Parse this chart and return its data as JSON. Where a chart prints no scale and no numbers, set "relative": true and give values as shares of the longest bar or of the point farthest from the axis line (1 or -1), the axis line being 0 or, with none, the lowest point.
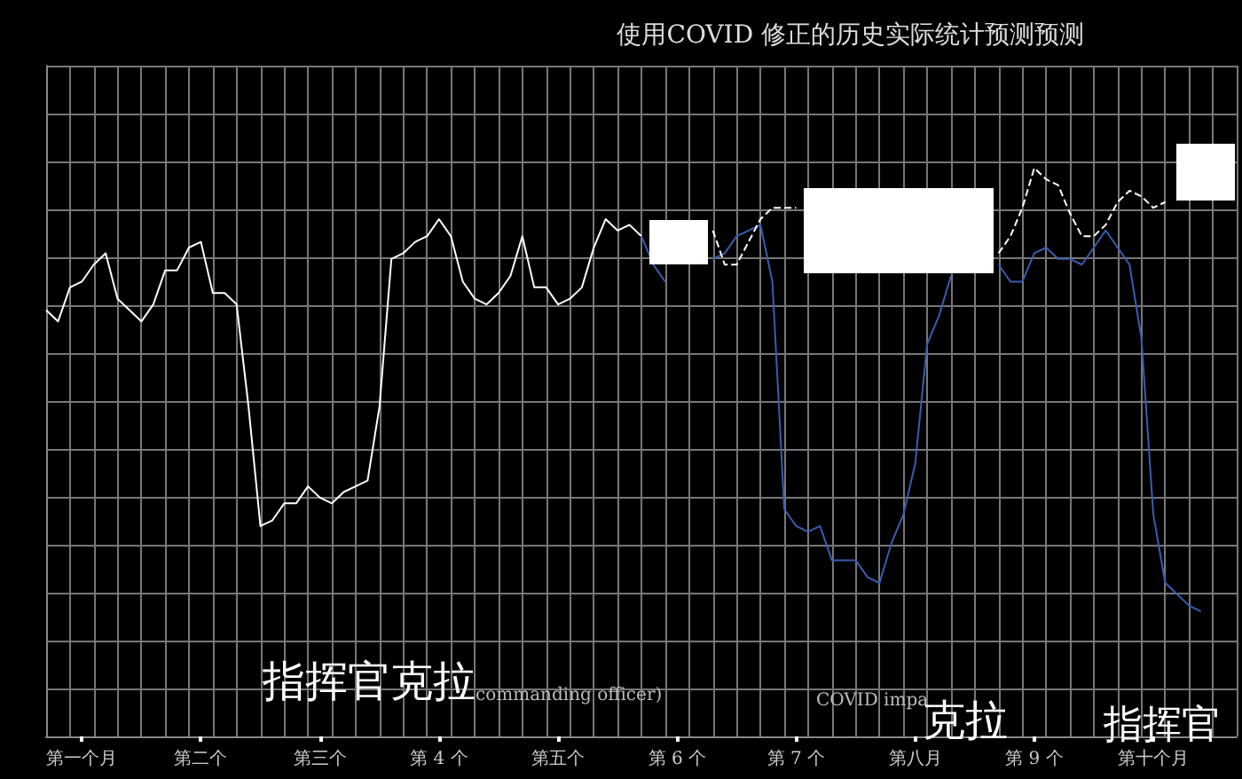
{
  "chart_data": {
    "type": "line",
    "title": "使用COVID 修正的历史实际统计预测预测",
    "relative": true,
    "grid": true,
    "annotations": [
      "指挥官克拉",
      "commanding officer)",
      "COVID impa",
      "克拉",
      "指挥官"
    ],
    "categories": [
      null,
      null,
      null,
      "第一个月",
      null,
      null,
      null,
      null,
      null,
      null,
      null,
      null,
      null,
      "第二个",
      null,
      null,
      null,
      null,
      null,
      null,
      null,
      null,
      null,
      "第三个",
      null,
      null,
      null,
      null,
      null,
      null,
      null,
      null,
      null,
      "第 4 个",
      null,
      null,
      null,
      null,
      null,
      null,
      null,
      null,
      null,
      "第五个",
      null,
      null,
      null,
      null,
      null,
      null,
      null,
      null,
      null,
      "第 6 个",
      null,
      null,
      null,
      null,
      null,
      null,
      null,
      null,
      null,
      "第 7 个",
      null,
      null,
      null,
      null,
      null,
      null,
      null,
      null,
      null,
      "第八月",
      null,
      null,
      null,
      null,
      null,
      null,
      null,
      null,
      null,
      "第 9 个",
      null,
      null,
      null,
      null,
      null,
      null,
      null,
      null,
      null,
      "第十个月",
      null,
      null,
      null,
      null,
      null,
      null,
      null
    ],
    "series": [
      {
        "color": "#ffffff",
        "line_style": "solid",
        "values": [
          0.75,
          0.73,
          0.79,
          0.8,
          0.83,
          0.85,
          0.77,
          0.75,
          0.73,
          0.76,
          0.82,
          0.82,
          0.86,
          0.87,
          0.78,
          0.78,
          0.76,
          0.58,
          0.37,
          0.38,
          0.41,
          0.41,
          0.44,
          0.42,
          0.41,
          0.43,
          0.44,
          0.45,
          0.58,
          0.84,
          0.85,
          0.87,
          0.88,
          0.91,
          0.88,
          0.8,
          0.77,
          0.76,
          0.78,
          0.81,
          0.88,
          0.79,
          0.79,
          0.76,
          0.77,
          0.79,
          0.86,
          0.91,
          0.89,
          0.9,
          0.88,
          null,
          null,
          null,
          null,
          null,
          null,
          null,
          null,
          null,
          null,
          null,
          null,
          null,
          null,
          null,
          null,
          null,
          null,
          null,
          null,
          null,
          null,
          null,
          null,
          null,
          null,
          null,
          null,
          null,
          null,
          null,
          null,
          null,
          null,
          null,
          null,
          null,
          null,
          null,
          null,
          null,
          null,
          null,
          null,
          null,
          null,
          null,
          null,
          null,
          null
        ]
      },
      {
        "color": "#3a5cb0",
        "line_style": "solid",
        "values": [
          null,
          null,
          null,
          null,
          null,
          null,
          null,
          null,
          null,
          null,
          null,
          null,
          null,
          null,
          null,
          null,
          null,
          null,
          null,
          null,
          null,
          null,
          null,
          null,
          null,
          null,
          null,
          null,
          null,
          null,
          null,
          null,
          null,
          null,
          null,
          null,
          null,
          null,
          null,
          null,
          null,
          null,
          null,
          null,
          null,
          null,
          null,
          null,
          null,
          null,
          0.88,
          0.83,
          0.8,
          null,
          null,
          null,
          0.84,
          0.85,
          0.88,
          0.89,
          0.9,
          0.8,
          0.4,
          0.37,
          0.36,
          0.37,
          0.31,
          0.31,
          0.31,
          0.28,
          0.27,
          0.34,
          0.39,
          0.48,
          0.69,
          0.74,
          0.81,
          null,
          null,
          null,
          0.83,
          0.8,
          0.8,
          0.85,
          0.86,
          0.84,
          0.84,
          0.83,
          0.86,
          0.89,
          0.86,
          0.83,
          0.7,
          0.39,
          0.27,
          0.25,
          0.23,
          0.22,
          null,
          null,
          null
        ]
      },
      {
        "color": "#ffffff",
        "line_style": "dashed",
        "values": [
          null,
          null,
          null,
          null,
          null,
          null,
          null,
          null,
          null,
          null,
          null,
          null,
          null,
          null,
          null,
          null,
          null,
          null,
          null,
          null,
          null,
          null,
          null,
          null,
          null,
          null,
          null,
          null,
          null,
          null,
          null,
          null,
          null,
          null,
          null,
          null,
          null,
          null,
          null,
          null,
          null,
          null,
          null,
          null,
          null,
          null,
          null,
          null,
          null,
          null,
          null,
          null,
          null,
          null,
          null,
          null,
          0.89,
          0.83,
          0.83,
          0.87,
          0.91,
          0.93,
          0.93,
          0.93,
          null,
          null,
          null,
          null,
          null,
          null,
          null,
          null,
          null,
          null,
          null,
          null,
          null,
          null,
          null,
          null,
          0.85,
          0.88,
          0.93,
          1.0,
          0.98,
          0.97,
          0.92,
          0.88,
          0.88,
          0.9,
          0.94,
          0.96,
          0.95,
          0.93,
          0.94,
          null,
          null,
          null,
          null,
          null,
          null
        ]
      }
    ]
  }
}
